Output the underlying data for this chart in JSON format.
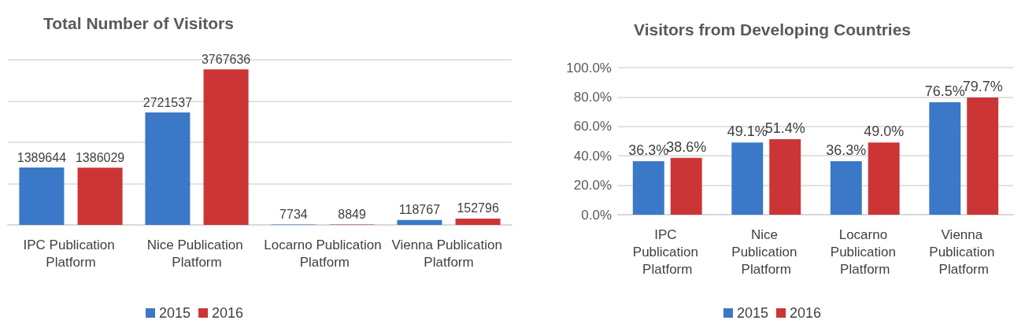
{
  "chart_data": [
    {
      "type": "bar",
      "title": "Total Number of Visitors",
      "categories": [
        "IPC Publication Platform",
        "Nice Publication Platform",
        "Locarno Publication Platform",
        "Vienna Publication Platform"
      ],
      "series": [
        {
          "name": "2015",
          "color": "#3b78c8",
          "values": [
            1389644,
            2721537,
            7734,
            118767
          ]
        },
        {
          "name": "2016",
          "color": "#cc3535",
          "values": [
            1386029,
            3767636,
            8849,
            152796
          ]
        }
      ],
      "ylim": [
        0,
        4000000
      ],
      "yticks": [
        {
          "value": 0,
          "label": null
        },
        {
          "value": 1000000,
          "label": null
        },
        {
          "value": 2000000,
          "label": null
        },
        {
          "value": 3000000,
          "label": null
        },
        {
          "value": 4000000,
          "label": null
        }
      ],
      "tick_labels": "x",
      "grid": "y",
      "data_labels": true,
      "legend": "bottom"
    },
    {
      "type": "bar",
      "title": "Visitors from Developing Countries",
      "categories": [
        "IPC Publication Platform",
        "Nice Publication Platform",
        "Locarno Publication Platform",
        "Vienna Publication Platform"
      ],
      "series": [
        {
          "name": "2015",
          "color": "#3b78c8",
          "values": [
            36.3,
            49.1,
            36.3,
            76.5
          ],
          "value_labels": [
            "36.3%",
            "49.1%",
            "36.3%",
            "76.5%"
          ]
        },
        {
          "name": "2016",
          "color": "#cc3535",
          "values": [
            38.6,
            51.4,
            49.0,
            79.7
          ],
          "value_labels": [
            "38.6%",
            "51.4%",
            "49.0%",
            "79.7%"
          ]
        }
      ],
      "ylim": [
        0,
        100
      ],
      "yticks": [
        {
          "value": 0,
          "label": "0.0%"
        },
        {
          "value": 20,
          "label": "20.0%"
        },
        {
          "value": 40,
          "label": "40.0%"
        },
        {
          "value": 60,
          "label": "60.0%"
        },
        {
          "value": 80,
          "label": "80.0%"
        },
        {
          "value": 100,
          "label": "100.0%"
        }
      ],
      "grid": "y",
      "legend": "bottom"
    }
  ]
}
